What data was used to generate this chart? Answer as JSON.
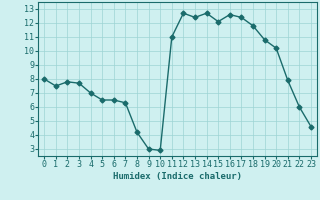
{
  "x": [
    0,
    1,
    2,
    3,
    4,
    5,
    6,
    7,
    8,
    9,
    10,
    11,
    12,
    13,
    14,
    15,
    16,
    17,
    18,
    19,
    20,
    21,
    22,
    23
  ],
  "y": [
    8.0,
    7.5,
    7.8,
    7.7,
    7.0,
    6.5,
    6.5,
    6.3,
    4.2,
    3.0,
    2.9,
    11.0,
    12.7,
    12.4,
    12.7,
    12.1,
    12.6,
    12.4,
    11.8,
    10.8,
    10.2,
    7.9,
    6.0,
    4.6
  ],
  "line_color": "#1a6b6b",
  "bg_color": "#cff0f0",
  "grid_color": "#9dd4d4",
  "xlabel": "Humidex (Indice chaleur)",
  "xlim": [
    -0.5,
    23.5
  ],
  "ylim": [
    2.5,
    13.5
  ],
  "yticks": [
    3,
    4,
    5,
    6,
    7,
    8,
    9,
    10,
    11,
    12,
    13
  ],
  "tick_color": "#1a6b6b",
  "label_fontsize": 6.5,
  "tick_fontsize": 6.0,
  "marker_size": 2.5,
  "line_width": 1.0
}
